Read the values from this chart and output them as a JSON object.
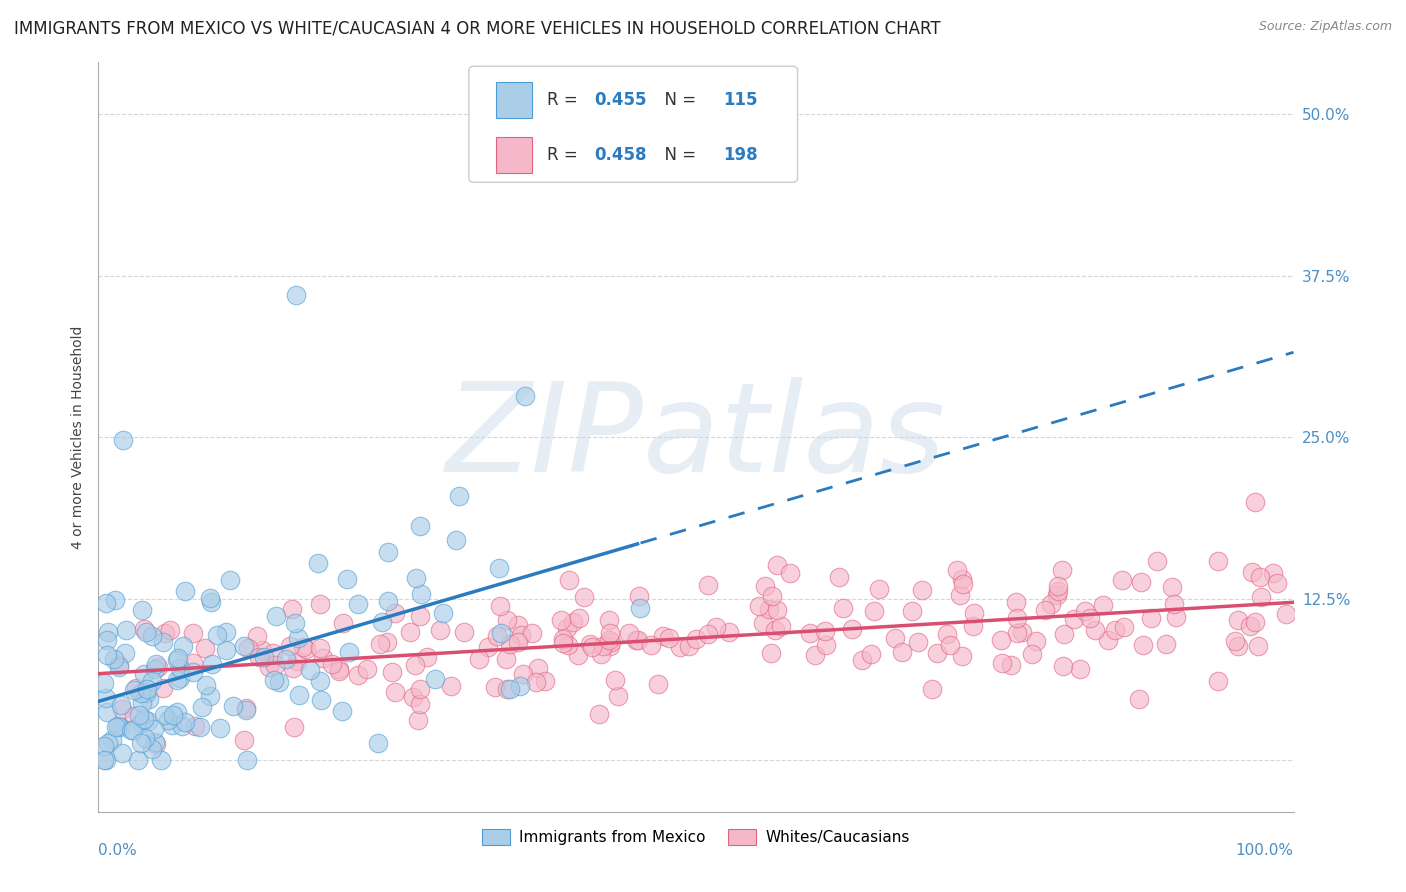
{
  "title": "IMMIGRANTS FROM MEXICO VS WHITE/CAUCASIAN 4 OR MORE VEHICLES IN HOUSEHOLD CORRELATION CHART",
  "source": "Source: ZipAtlas.com",
  "ylabel": "4 or more Vehicles in Household",
  "xlim": [
    0,
    100
  ],
  "ylim": [
    -4,
    54
  ],
  "ytick_vals": [
    0,
    12.5,
    25.0,
    37.5,
    50.0
  ],
  "ytick_labels": [
    "",
    "12.5%",
    "25.0%",
    "37.5%",
    "50.0%"
  ],
  "blue_R": 0.455,
  "blue_N": 115,
  "pink_R": 0.458,
  "pink_N": 198,
  "blue_face": "#aacde8",
  "blue_edge": "#4d9dd4",
  "pink_face": "#f5b8cb",
  "pink_edge": "#e0637e",
  "blue_line": "#2a7bbf",
  "pink_line": "#d94f72",
  "bg": "#ffffff",
  "grid_color": "#cccccc",
  "tick_color": "#4d8fc4",
  "legend_blue": "Immigrants from Mexico",
  "legend_pink": "Whites/Caucasians",
  "watermark": "ZIPatlas",
  "title_fs": 12,
  "ylabel_fs": 10,
  "tick_fs": 11,
  "info_color": "#2a7bbf",
  "blue_seed": 77,
  "pink_seed": 33
}
